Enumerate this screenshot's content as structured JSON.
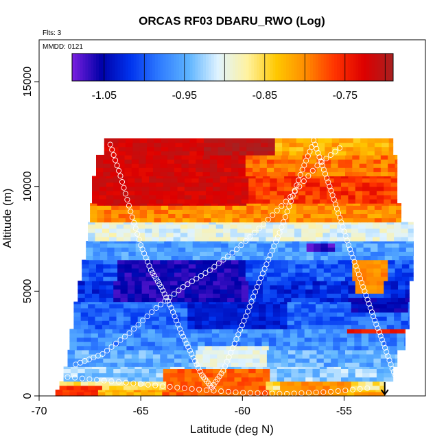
{
  "chart_data": {
    "type": "heatmap",
    "title": "ORCAS RF03 DBARU_RWO (Log)",
    "flights_label": "Flts: 3",
    "date_label": "MMDD: 0121",
    "xlabel": "Latitude (deg N)",
    "ylabel": "Altitude (m)",
    "xlim": [
      -70,
      -51
    ],
    "ylim": [
      0,
      17000
    ],
    "x_ticks": [
      -70,
      -65,
      -60,
      -55
    ],
    "x_tick_labels": [
      "-70",
      "-65",
      "-60",
      "-55"
    ],
    "y_ticks": [
      0,
      5000,
      10000,
      15000
    ],
    "y_tick_labels": [
      "0",
      "5000",
      "10000",
      "15000"
    ],
    "colorbar": {
      "min": -1.09,
      "max": -0.69,
      "ticks": [
        -1.05,
        -0.95,
        -0.85,
        -0.75
      ],
      "tick_labels": [
        "-1.05",
        "-0.95",
        "-0.85",
        "-0.75"
      ],
      "colors": [
        "#7b1fe0",
        "#0000a8",
        "#0033ee",
        "#2f7cff",
        "#5eb4ff",
        "#dff3ff",
        "#fff2a0",
        "#ffc800",
        "#ff8c00",
        "#ff3300",
        "#dd0000",
        "#a82020"
      ]
    },
    "bands": [
      {
        "alt": [
          0,
          300
        ],
        "lat": [
          -69.2,
          -53.0
        ],
        "value": -0.82
      },
      {
        "alt": [
          300,
          700
        ],
        "lat": [
          -69.0,
          -53.0
        ],
        "value": -0.86
      },
      {
        "alt": [
          700,
          1400
        ],
        "lat": [
          -68.8,
          -52.6
        ],
        "value": -0.93
      },
      {
        "alt": [
          1400,
          2200
        ],
        "lat": [
          -68.6,
          -52.4
        ],
        "value": -0.95
      },
      {
        "alt": [
          2200,
          3200
        ],
        "lat": [
          -68.5,
          -52.0
        ],
        "value": -0.97
      },
      {
        "alt": [
          3200,
          4500
        ],
        "lat": [
          -68.3,
          -51.8
        ],
        "value": -0.99
      },
      {
        "alt": [
          4500,
          5500
        ],
        "lat": [
          -68.1,
          -51.8
        ],
        "value": -1.02
      },
      {
        "alt": [
          5500,
          6500
        ],
        "lat": [
          -67.9,
          -51.6
        ],
        "value": -1.0
      },
      {
        "alt": [
          6500,
          7400
        ],
        "lat": [
          -67.7,
          -51.6
        ],
        "value": -0.96
      },
      {
        "alt": [
          7400,
          8300
        ],
        "lat": [
          -67.6,
          -51.6
        ],
        "value": -0.9
      },
      {
        "alt": [
          8300,
          9200
        ],
        "lat": [
          -67.5,
          -52.2
        ],
        "value": -0.8
      },
      {
        "alt": [
          9200,
          10500
        ],
        "lat": [
          -67.4,
          -52.4
        ],
        "value": -0.76
      },
      {
        "alt": [
          10500,
          11500
        ],
        "lat": [
          -67.2,
          -52.4
        ],
        "value": -0.79
      },
      {
        "alt": [
          11500,
          12300
        ],
        "lat": [
          -66.8,
          -52.6
        ],
        "value": -0.82
      }
    ],
    "patches": [
      {
        "alt": [
          9000,
          12300
        ],
        "lat": [
          -67.4,
          -60.0
        ],
        "value": -0.72
      },
      {
        "alt": [
          11500,
          12300
        ],
        "lat": [
          -62.0,
          -58.5
        ],
        "value": -0.7
      },
      {
        "alt": [
          4500,
          6500
        ],
        "lat": [
          -66.5,
          -60.0
        ],
        "value": -1.06
      },
      {
        "alt": [
          3200,
          4500
        ],
        "lat": [
          -63.0,
          -58.0
        ],
        "value": -1.03
      },
      {
        "alt": [
          6800,
          7300
        ],
        "lat": [
          -57.2,
          -55.8
        ],
        "value": -1.07
      },
      {
        "alt": [
          4800,
          6500
        ],
        "lat": [
          -54.8,
          -53.2
        ],
        "value": -0.8
      },
      {
        "alt": [
          4000,
          4600
        ],
        "lat": [
          -55.0,
          -52.0
        ],
        "value": -1.05
      },
      {
        "alt": [
          2900,
          3200
        ],
        "lat": [
          -55.2,
          -52.0
        ],
        "value": -0.74
      },
      {
        "alt": [
          0,
          1200
        ],
        "lat": [
          -64.0,
          -59.0
        ],
        "value": -0.78
      },
      {
        "alt": [
          0,
          700
        ],
        "lat": [
          -58.5,
          -55.0
        ],
        "value": -0.8
      },
      {
        "alt": [
          0,
          400
        ],
        "lat": [
          -69.2,
          -67.2
        ],
        "value": -0.76
      },
      {
        "alt": [
          12200,
          12800
        ],
        "lat": [
          -56.6,
          -52.8
        ],
        "value": -0.94
      },
      {
        "alt": [
          1400,
          2300
        ],
        "lat": [
          -62.5,
          -59.0
        ],
        "value": -0.9
      }
    ],
    "samples": [
      {
        "lat": [
          -68.6,
          -53.5
        ],
        "alt": [
          900,
          700,
          500,
          300,
          150,
          100,
          200,
          400
        ]
      },
      {
        "lat": [
          -68.2,
          -55.0
        ],
        "alt": [
          1500,
          2000,
          3000,
          4200,
          5200,
          6000,
          7000,
          8200,
          9500,
          11000,
          12000
        ]
      },
      {
        "lat": [
          -66.5,
          -61.5
        ],
        "alt": [
          12000,
          10500,
          8800,
          7200,
          6000,
          5200,
          4200,
          3000,
          2000,
          1000,
          400
        ]
      },
      {
        "lat": [
          -61.5,
          -56.5
        ],
        "alt": [
          400,
          1200,
          2500,
          3800,
          5200,
          6500,
          7800,
          9300,
          10800,
          12100
        ]
      },
      {
        "lat": [
          -56.5,
          -52.2
        ],
        "alt": [
          12200,
          11000,
          9800,
          8500,
          7200,
          6000,
          4800,
          3600,
          2500,
          1300,
          400
        ]
      }
    ],
    "marker": {
      "lat": -53.0,
      "label": "arrow-down"
    },
    "grid": false
  }
}
